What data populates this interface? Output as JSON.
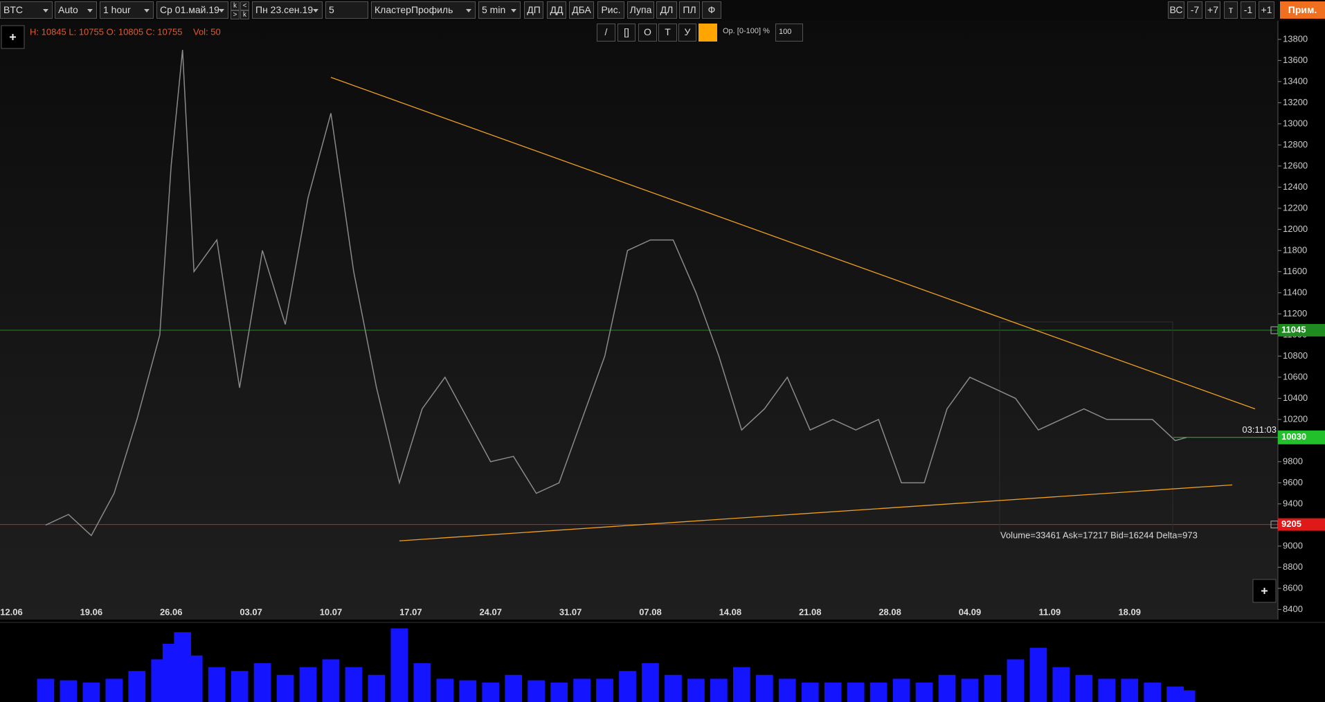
{
  "toolbar": {
    "symbol": "BTC",
    "mode": "Auto",
    "timeframe": "1 hour",
    "date_from": "Ср 01.май.19",
    "nav": [
      "k",
      "<",
      ">",
      "k"
    ],
    "date_to": "Пн 23.сен.19",
    "count": "5",
    "indicator": "КластерПрофиль",
    "profile_period": "5 min",
    "buttons": [
      "ДП",
      "ДД",
      "ДБА",
      "Рис.",
      "Лупа",
      "ДЛ",
      "ПЛ",
      "Ф"
    ],
    "right_buttons": [
      "ВС",
      "-7",
      "+7",
      "т",
      "-1",
      "+1"
    ],
    "notes_button": "Прим."
  },
  "drawing_tools": {
    "buttons": [
      "/",
      "[]",
      "О",
      "Т",
      "У"
    ],
    "opacity_label": "Ор. [0-100] %:",
    "opacity_value": "100"
  },
  "info": {
    "ohlc": "H: 10845 L: 10755 O: 10805 C: 10755",
    "volume": "Vol: 50"
  },
  "chart_data": {
    "type": "line",
    "color": "#8a8a8a",
    "x": [
      "15.06",
      "17.06",
      "19.06",
      "21.06",
      "23.06",
      "25.06",
      "26.06",
      "27.06",
      "28.06",
      "30.06",
      "02.07",
      "04.07",
      "06.07",
      "08.07",
      "10.07",
      "12.07",
      "14.07",
      "16.07",
      "18.07",
      "20.07",
      "22.07",
      "24.07",
      "26.07",
      "28.07",
      "30.07",
      "01.08",
      "03.08",
      "05.08",
      "07.08",
      "09.08",
      "11.08",
      "13.08",
      "15.08",
      "17.08",
      "19.08",
      "21.08",
      "23.08",
      "25.08",
      "27.08",
      "29.08",
      "31.08",
      "02.09",
      "04.09",
      "06.09",
      "08.09",
      "10.09",
      "12.09",
      "14.09",
      "16.09",
      "18.09",
      "20.09",
      "22.09",
      "23.09"
    ],
    "values": [
      9200,
      9300,
      9100,
      9500,
      10200,
      11000,
      12600,
      13700,
      11600,
      11900,
      10500,
      11800,
      11100,
      12300,
      13100,
      11600,
      10500,
      9600,
      10300,
      10600,
      10200,
      9800,
      9850,
      9500,
      9600,
      10200,
      10800,
      11800,
      11900,
      11900,
      11400,
      10800,
      10100,
      10300,
      10600,
      10100,
      10200,
      10100,
      10200,
      9600,
      9600,
      10300,
      10600,
      10500,
      10400,
      10100,
      10200,
      10300,
      10200,
      10200,
      10200,
      10000,
      10030
    ],
    "volume": {
      "color": "#1414ff",
      "ylim": [
        0,
        100
      ],
      "values": [
        30,
        28,
        25,
        30,
        40,
        55,
        75,
        90,
        60,
        45,
        40,
        50,
        35,
        45,
        55,
        45,
        35,
        95,
        50,
        30,
        28,
        25,
        35,
        28,
        25,
        30,
        30,
        40,
        50,
        35,
        30,
        30,
        45,
        35,
        30,
        25,
        25,
        25,
        25,
        30,
        25,
        35,
        30,
        35,
        55,
        70,
        45,
        35,
        30,
        30,
        25,
        20,
        15
      ]
    },
    "xlim": [
      "11.06",
      "01.10"
    ],
    "xticks": [
      "12.06",
      "19.06",
      "26.06",
      "03.07",
      "10.07",
      "17.07",
      "24.07",
      "31.07",
      "07.08",
      "14.08",
      "21.08",
      "28.08",
      "04.09",
      "11.09",
      "18.09"
    ],
    "ylim": [
      8304,
      13976
    ],
    "yticks": [
      8400,
      8600,
      8800,
      9000,
      9200,
      9400,
      9600,
      9800,
      10000,
      10200,
      10400,
      10600,
      10800,
      11000,
      11200,
      11400,
      11600,
      11800,
      12000,
      12200,
      12400,
      12600,
      12800,
      13000,
      13200,
      13400,
      13600,
      13800
    ],
    "levels": [
      {
        "value": 11045,
        "color": "#1f8a1f"
      },
      {
        "value": 9205,
        "color": "#e01818"
      }
    ],
    "last_price": {
      "value": 10030,
      "color": "#22c02a"
    },
    "trendlines": [
      {
        "x": [
          "10.07",
          "29.09"
        ],
        "y": [
          13440,
          10300
        ],
        "color": "#f0a020"
      },
      {
        "x": [
          "16.07",
          "27.09"
        ],
        "y": [
          9050,
          9580
        ],
        "color": "#f0a020"
      }
    ]
  },
  "profile_stats": "Volume=33461  Ask=17217  Bid=16244  Delta=973",
  "timer": "03:11:03"
}
